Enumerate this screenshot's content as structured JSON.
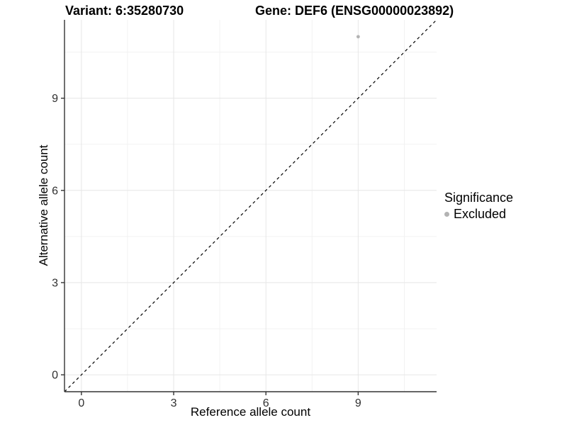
{
  "chart_data": {
    "type": "scatter",
    "title_left": "Variant: 6:35280730",
    "title_right": "Gene: DEF6 (ENSG00000023892)",
    "xlabel": "Reference allele count",
    "ylabel": "Alternative allele count",
    "xlim": [
      -0.55,
      11.55
    ],
    "ylim": [
      -0.55,
      11.55
    ],
    "x_breaks": [
      0,
      3,
      6,
      9
    ],
    "y_breaks": [
      0,
      3,
      6,
      9
    ],
    "x_minor_breaks": [
      1.5,
      4.5,
      7.5,
      10.5
    ],
    "y_minor_breaks": [
      1.5,
      4.5,
      7.5,
      10.5
    ],
    "grid": "major and minor, light gray on white panel",
    "points": [
      {
        "x": 9,
        "y": 11,
        "series": "Excluded"
      }
    ],
    "reference_line": {
      "kind": "identity",
      "slope": 1,
      "intercept": 0,
      "style": "dashed",
      "color": "#000000"
    },
    "legend": {
      "position": "right",
      "title": "Significance",
      "items": [
        {
          "label": "Excluded",
          "color": "#b3b3b3"
        }
      ]
    },
    "colors": {
      "point": "#b3b3b3",
      "grid_major": "#e6e6e6",
      "grid_minor": "#f1f1f1",
      "axis_line": "#333333",
      "tick_text": "#303030",
      "title_text": "#000000",
      "panel_background": "#ffffff"
    }
  }
}
